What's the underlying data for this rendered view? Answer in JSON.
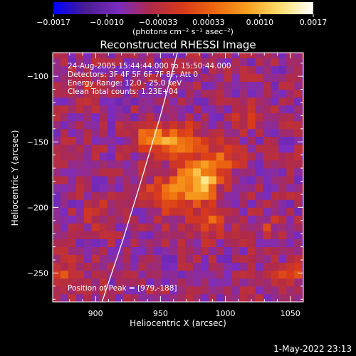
{
  "chart_data": {
    "type": "heatmap",
    "title": "Reconstructed RHESSI Image",
    "xlabel": "Heliocentric X (arcsec)",
    "ylabel": "Heliocentric Y (arcsec)",
    "xlim": [
      867,
      1060
    ],
    "ylim": [
      -272,
      -82
    ],
    "x_ticks": [
      900,
      950,
      1000,
      1050
    ],
    "y_ticks": [
      -100,
      -150,
      -200,
      -250
    ],
    "colorbar": {
      "unit_label": "(photons cm⁻² s⁻¹ asec⁻²)",
      "range": [
        -0.0017,
        0.0017
      ],
      "tick_values": [
        -0.0017,
        -0.001,
        -0.00033,
        0.00033,
        0.001,
        0.0017
      ],
      "tick_labels": [
        "−0.0017",
        "−0.0010",
        "−0.00033",
        "0.00033",
        "0.0010",
        "0.0017"
      ],
      "colormap": [
        "#0000ff",
        "#4b1d93",
        "#7a2cc0",
        "#b02a4a",
        "#d83a1a",
        "#ee6a10",
        "#f8a020",
        "#ffe070",
        "#ffffff"
      ]
    },
    "annotations": [
      "24-Aug-2005 15:44:44.000 to 15:50:44.000",
      "Detectors: 3F 4F 5F 6F 7F 8F, Att 0",
      "Energy Range: 12.0 - 25.0 keV",
      "Clean     Total counts: 1.23E+04"
    ],
    "peak_label": "Position of Peak = [979,-188]",
    "peak": [
      979,
      -188
    ],
    "limb": [
      [
        963,
        -82
      ],
      [
        950,
        -130
      ],
      [
        935,
        -180
      ],
      [
        921,
        -225
      ],
      [
        905,
        -272
      ]
    ],
    "sources": [
      {
        "x": 978,
        "y": -180,
        "amplitude": 0.0017,
        "sigma": 10
      },
      {
        "x": 945,
        "y": -147,
        "amplitude": 0.0014,
        "sigma": 8
      },
      {
        "x": 965,
        "y": -150,
        "amplitude": 0.0012,
        "sigma": 9
      },
      {
        "x": 955,
        "y": -190,
        "amplitude": 0.001,
        "sigma": 10
      },
      {
        "x": 995,
        "y": -165,
        "amplitude": 0.0008,
        "sigma": 10
      },
      {
        "x": 985,
        "y": -210,
        "amplitude": 0.0007,
        "sigma": 9
      },
      {
        "x": 880,
        "y": -250,
        "amplitude": 0.0005,
        "sigma": 10
      },
      {
        "x": 900,
        "y": -205,
        "amplitude": 0.0004,
        "sigma": 8
      },
      {
        "x": 1050,
        "y": -255,
        "amplitude": 0.0006,
        "sigma": 9
      },
      {
        "x": 1030,
        "y": -215,
        "amplitude": 0.0004,
        "sigma": 8
      },
      {
        "x": 1020,
        "y": -130,
        "amplitude": 0.0004,
        "sigma": 8
      },
      {
        "x": 890,
        "y": -105,
        "amplitude": 0.0003,
        "sigma": 8
      }
    ],
    "background": -0.0006,
    "grid": false
  },
  "footer": {
    "timestamp": "1-May-2022 23:13"
  }
}
